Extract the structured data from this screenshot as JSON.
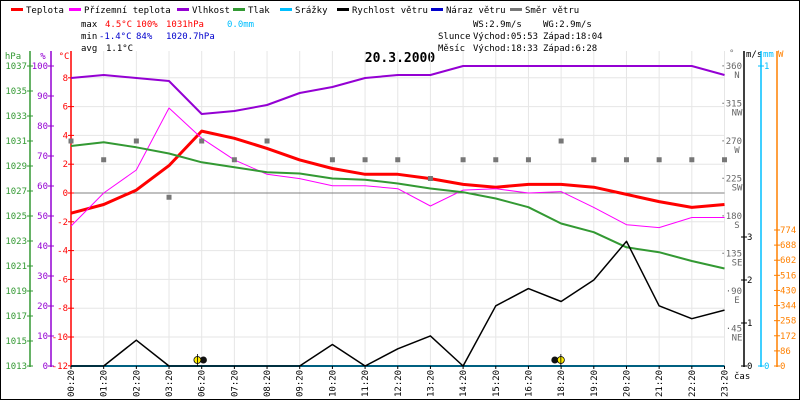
{
  "legend": [
    {
      "label": "Teplota",
      "color": "#ff0000"
    },
    {
      "label": "Přízemní teplota",
      "color": "#ff00ff"
    },
    {
      "label": "Vlhkost",
      "color": "#9400d3"
    },
    {
      "label": "Tlak",
      "color": "#339933"
    },
    {
      "label": "Srážky",
      "color": "#00bfff"
    },
    {
      "label": "Rychlost větru",
      "color": "#000000"
    },
    {
      "label": "Náraz větru",
      "color": "#0000cc"
    },
    {
      "label": "Směr větru",
      "color": "#777777"
    }
  ],
  "stats": {
    "max_label": "max",
    "max_temp": "4.5°C",
    "max_hum": "100%",
    "max_press": "1031hPa",
    "max_rain": "0.0mm",
    "min_label": "min",
    "min_temp": "-1.4°C",
    "min_hum": "84%",
    "min_press": "1020.7hPa",
    "avg_label": "avg",
    "avg_temp": "1.1°C"
  },
  "astro": {
    "ws": "WS:2.9m/s",
    "wg": "WG:2.9m/s",
    "sun_label": "Slunce",
    "sun_rise": "Východ:05:53",
    "sun_set": "Západ:18:04",
    "moon_label": "Měsíc",
    "moon_rise": "Východ:18:33",
    "moon_set": "Západ:6:28"
  },
  "chart_data": {
    "type": "line",
    "title": "20.3.2000",
    "xlabel": "čas",
    "x": [
      "00:20",
      "01:20",
      "02:20",
      "03:20",
      "06:20",
      "07:20",
      "08:20",
      "09:20",
      "10:20",
      "11:20",
      "12:20",
      "13:20",
      "14:20",
      "15:20",
      "16:20",
      "18:20",
      "19:20",
      "20:20",
      "21:20",
      "22:20",
      "23:20"
    ],
    "axes": {
      "hpa": {
        "unit": "hPa",
        "ticks": [
          "1037",
          "1035",
          "1033",
          "1031",
          "1029",
          "1027",
          "1025",
          "1023",
          "1021",
          "1019",
          "1017",
          "1015",
          "1013"
        ],
        "range": [
          1013,
          1037
        ],
        "color": "#339933"
      },
      "pct": {
        "unit": "%",
        "ticks": [
          "100",
          "90",
          "80",
          "70",
          "60",
          "50",
          "40",
          "30",
          "20",
          "10",
          "0"
        ],
        "range": [
          0,
          100
        ],
        "color": "#9400d3"
      },
      "temp": {
        "unit": "°C",
        "ticks": [
          "8",
          "6",
          "4",
          "2",
          "0",
          "-2",
          "-4",
          "-6",
          "-8",
          "-10",
          "-12"
        ],
        "range": [
          -12,
          8
        ],
        "color": "#ff0000"
      },
      "dir": {
        "unit": "°",
        "ticks": [
          {
            "v": "360",
            "c": "N"
          },
          {
            "v": "315",
            "c": "NW"
          },
          {
            "v": "270",
            "c": "W"
          },
          {
            "v": "225",
            "c": "SW"
          },
          {
            "v": "180",
            "c": "S"
          },
          {
            "v": "135",
            "c": "SE"
          },
          {
            "v": "90",
            "c": "E"
          },
          {
            "v": "45",
            "c": "NE"
          }
        ],
        "range": [
          0,
          360
        ],
        "color": "#777777"
      },
      "ms": {
        "unit": "m/s",
        "ticks": [
          "3",
          "2",
          "1",
          "0"
        ],
        "range": [
          0,
          3
        ],
        "color": "#000000"
      },
      "mm": {
        "unit": "mm",
        "ticks": [
          "1",
          "0"
        ],
        "range": [
          0,
          1
        ],
        "color": "#00bfff"
      },
      "w": {
        "unit": "W",
        "ticks": [
          "774",
          "688",
          "602",
          "516",
          "430",
          "344",
          "258",
          "172",
          "86",
          "0"
        ],
        "range": [
          0,
          774
        ],
        "color": "#ff8000"
      }
    },
    "series": [
      {
        "name": "Teplota",
        "axis": "temp",
        "color": "#ff0000",
        "width": 3,
        "values": [
          -1.4,
          -0.8,
          0.2,
          1.9,
          4.3,
          3.8,
          3.1,
          2.3,
          1.7,
          1.3,
          1.3,
          1.0,
          0.6,
          0.4,
          0.6,
          0.6,
          0.4,
          -0.1,
          -0.6,
          -1.0,
          -0.8
        ]
      },
      {
        "name": "Přízemní teplota",
        "axis": "temp",
        "color": "#ff00ff",
        "width": 1,
        "values": [
          -2.3,
          0.0,
          1.6,
          5.9,
          3.8,
          2.3,
          1.3,
          1.0,
          0.5,
          0.5,
          0.3,
          -0.9,
          0.2,
          0.3,
          0.0,
          0.1,
          -1.0,
          -2.2,
          -2.4,
          -1.7,
          -1.7
        ]
      },
      {
        "name": "Vlhkost",
        "axis": "pct",
        "color": "#9400d3",
        "width": 2,
        "values": [
          96,
          97,
          96,
          95,
          84,
          85,
          87,
          91,
          93,
          96,
          97,
          97,
          100,
          100,
          100,
          100,
          100,
          100,
          100,
          100,
          97
        ]
      },
      {
        "name": "Tlak",
        "axis": "hpa",
        "color": "#339933",
        "width": 2,
        "values": [
          1030.6,
          1030.9,
          1030.5,
          1030.0,
          1029.3,
          1028.9,
          1028.5,
          1028.4,
          1028.0,
          1027.9,
          1027.6,
          1027.2,
          1026.9,
          1026.4,
          1025.7,
          1024.4,
          1023.7,
          1022.5,
          1022.1,
          1021.4,
          1020.8
        ]
      },
      {
        "name": "Srážky",
        "axis": "mm",
        "color": "#00bfff",
        "width": 2,
        "values": [
          0,
          0,
          0,
          0,
          0,
          0,
          0,
          0,
          0,
          0,
          0,
          0,
          0,
          0,
          0,
          0,
          0,
          0,
          0,
          0,
          0
        ]
      },
      {
        "name": "Rychlost větru",
        "axis": "ms",
        "color": "#000000",
        "width": 1.5,
        "values": [
          0,
          0,
          0.6,
          0,
          0,
          0,
          0,
          0,
          0.5,
          0,
          0.4,
          0.7,
          0,
          1.4,
          1.8,
          1.5,
          2.0,
          2.9,
          1.4,
          1.1,
          1.3
        ]
      },
      {
        "name": "Směr větru",
        "axis": "dir",
        "color": "#777777",
        "style": "points",
        "values": [
          270,
          247.5,
          270,
          202.5,
          270,
          247.5,
          270,
          null,
          247.5,
          247.5,
          247.5,
          225,
          247.5,
          247.5,
          247.5,
          270,
          247.5,
          247.5,
          247.5,
          247.5,
          247.5
        ]
      }
    ],
    "events": [
      {
        "name": "sunrise",
        "at_index": 3.93
      },
      {
        "name": "sunset",
        "at_index": 14.9
      }
    ],
    "grid": true
  }
}
